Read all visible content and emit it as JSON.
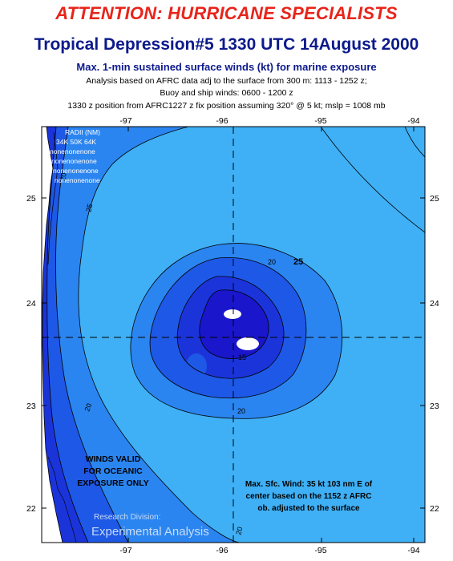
{
  "header": {
    "attention": "ATTENTION: HURRICANE SPECIALISTS",
    "title": "Tropical Depression#5 1330 UTC 14August 2000",
    "subtitle": "Max. 1-min sustained surface winds (kt) for marine exposure",
    "note1": "Analysis based on AFRC data adj to the surface from 300 m: 1113 - 1252 z;",
    "note2": "Buoy and ship winds: 0600 - 1200 z",
    "note3": "1330 z position from AFRC1227 z  fix position assuming 320° @ 5 kt; mslp = 1008 mb"
  },
  "map": {
    "lon_ticks": [
      "-97",
      "-96",
      "-95",
      "-94"
    ],
    "lat_ticks": [
      "25",
      "24",
      "23",
      "22"
    ],
    "contour_labels": [
      "25",
      "20",
      "25",
      "20",
      "15",
      "20",
      "20",
      "20"
    ],
    "radii": {
      "header": "RADII (NM)",
      "columns": "34K 50K 64K",
      "rows": [
        "nonenonenone",
        "nonenonenone",
        "nonenonenone",
        "nonenonenone"
      ]
    },
    "winds_valid": [
      "WINDS VALID",
      "FOR OCEANIC",
      "EXPOSURE ONLY"
    ],
    "max_wind": [
      "Max. Sfc. Wind: 35 kt 103 nm E of",
      "center based on the 1152 z AFRC",
      "ob. adjusted to the surface"
    ],
    "credit": [
      "Research Division:",
      "Experimental Analysis"
    ],
    "colors": {
      "land": "#ffffff",
      "wind_15_20": "#3fb0f5",
      "wind_20_25": "#2b85f0",
      "wind_25_30": "#1e58e6",
      "wind_30_35": "#1b34da",
      "wind_35_plus": "#1a16cc",
      "title_red": "#e8241a",
      "title_blue": "#0d1a8c"
    }
  }
}
